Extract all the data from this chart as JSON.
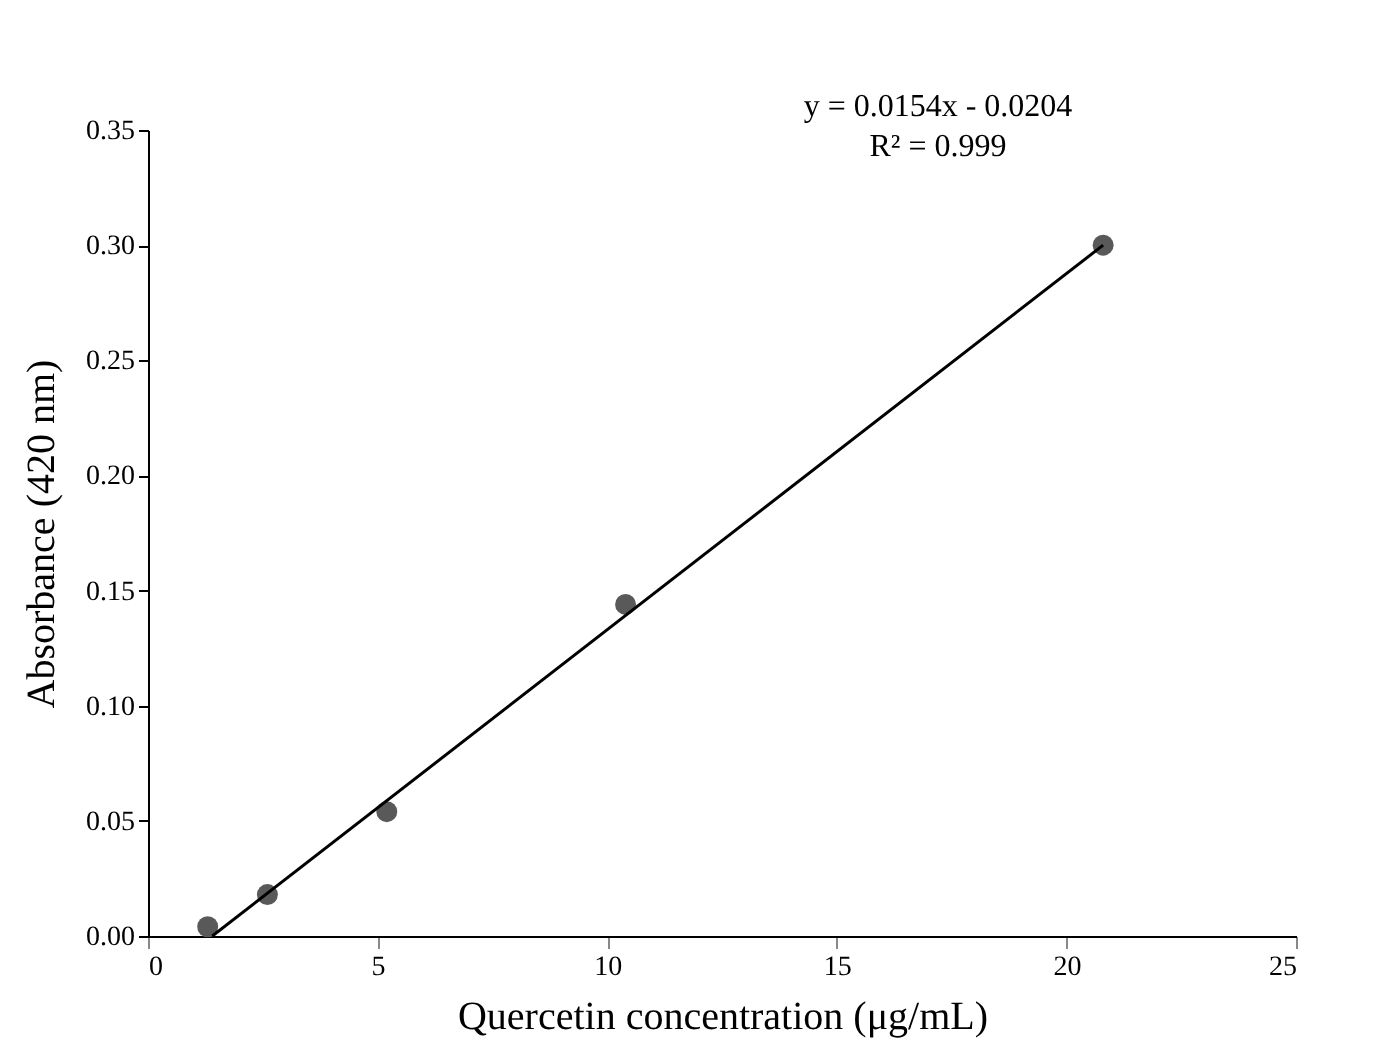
{
  "chart_data": {
    "type": "scatter",
    "xlabel": "Quercetin concentration (μg/mL)",
    "ylabel": "Absorbance (420 nm)",
    "xlim": [
      0,
      25
    ],
    "xticks": [
      0,
      5,
      10,
      15,
      20,
      25
    ],
    "ylim": [
      0,
      0.35
    ],
    "yticks": [
      {
        "value": 0,
        "label": "0.00"
      },
      {
        "value": 0.05,
        "label": "0.05"
      },
      {
        "value": 0.1,
        "label": "0.10"
      },
      {
        "value": 0.15,
        "label": "0.15"
      },
      {
        "value": 0.2,
        "label": "0.20"
      },
      {
        "value": 0.25,
        "label": "0.25"
      },
      {
        "value": 0.3,
        "label": "0.30"
      },
      {
        "value": 0.35,
        "label": "0.35"
      }
    ],
    "grid": false,
    "marker": "circle",
    "series": [
      {
        "color": "#595959",
        "x": [
          1.3,
          2.6,
          5.2,
          10.4,
          20.8
        ],
        "values": [
          0.004,
          0.018,
          0.054,
          0.144,
          0.3
        ]
      },
      {
        "type": "line",
        "marker": "none",
        "color": "#000000",
        "x": [
          1.4,
          20.8
        ],
        "values": [
          0.0,
          0.3
        ]
      }
    ],
    "annotations": [
      "y = 0.0154x - 0.0204",
      "R² = 0.999"
    ]
  }
}
